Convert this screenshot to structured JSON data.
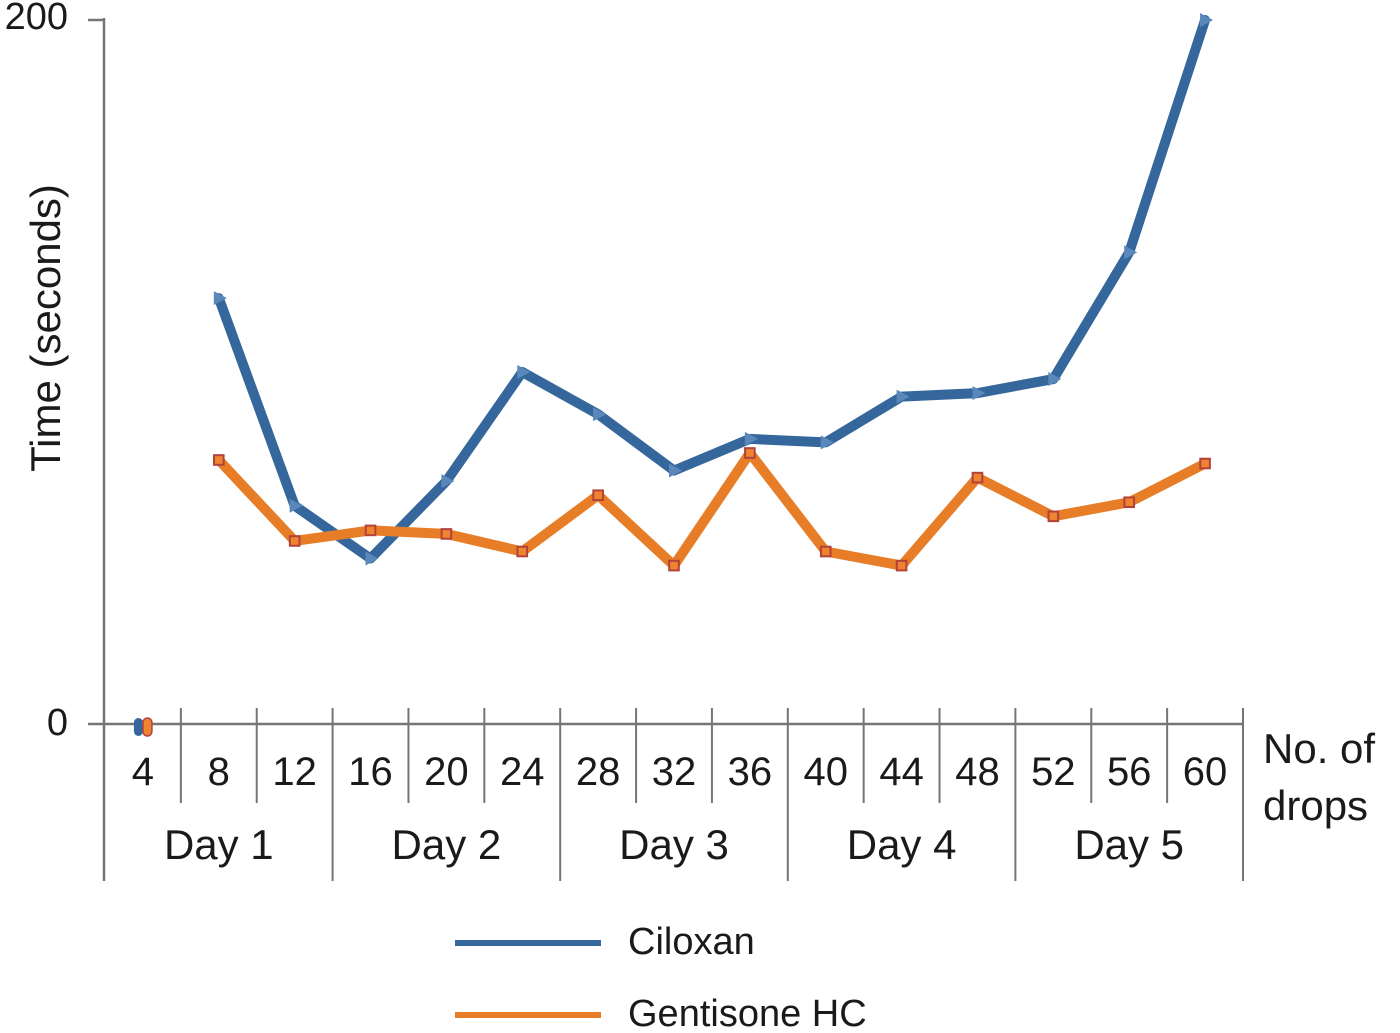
{
  "chart_data": {
    "type": "line",
    "title": "",
    "ylabel": "Time (seconds)",
    "xlabel_lines": [
      "No. of",
      "drops"
    ],
    "ylim": [
      0,
      200
    ],
    "ytick_labels": {
      "top": "200",
      "bottom": "0"
    },
    "categories": [
      "4",
      "8",
      "12",
      "16",
      "20",
      "24",
      "28",
      "32",
      "36",
      "40",
      "44",
      "48",
      "52",
      "56",
      "60"
    ],
    "day_groups": [
      "Day 1",
      "Day 2",
      "Day 3",
      "Day 4",
      "Day 5"
    ],
    "series": [
      {
        "name": "Ciloxan",
        "color": "#36679c",
        "marker": "triangle",
        "marker_color": "#5b88bb",
        "values": [
          0,
          121,
          62,
          47,
          69,
          100,
          88,
          72,
          81,
          80,
          93,
          94,
          98,
          134,
          200
        ]
      },
      {
        "name": "Gentisone HC",
        "color": "#e87d28",
        "marker": "square",
        "marker_color": "#ee8330",
        "marker_outline": "#b2423a",
        "values": [
          0,
          75,
          52,
          55,
          54,
          49,
          65,
          45,
          77,
          49,
          45,
          70,
          59,
          63,
          74
        ]
      }
    ],
    "legend_position": "bottom-center",
    "grid": false,
    "axis_color": "#757575",
    "text_color": "#1a1a1a",
    "background": "#ffffff"
  }
}
